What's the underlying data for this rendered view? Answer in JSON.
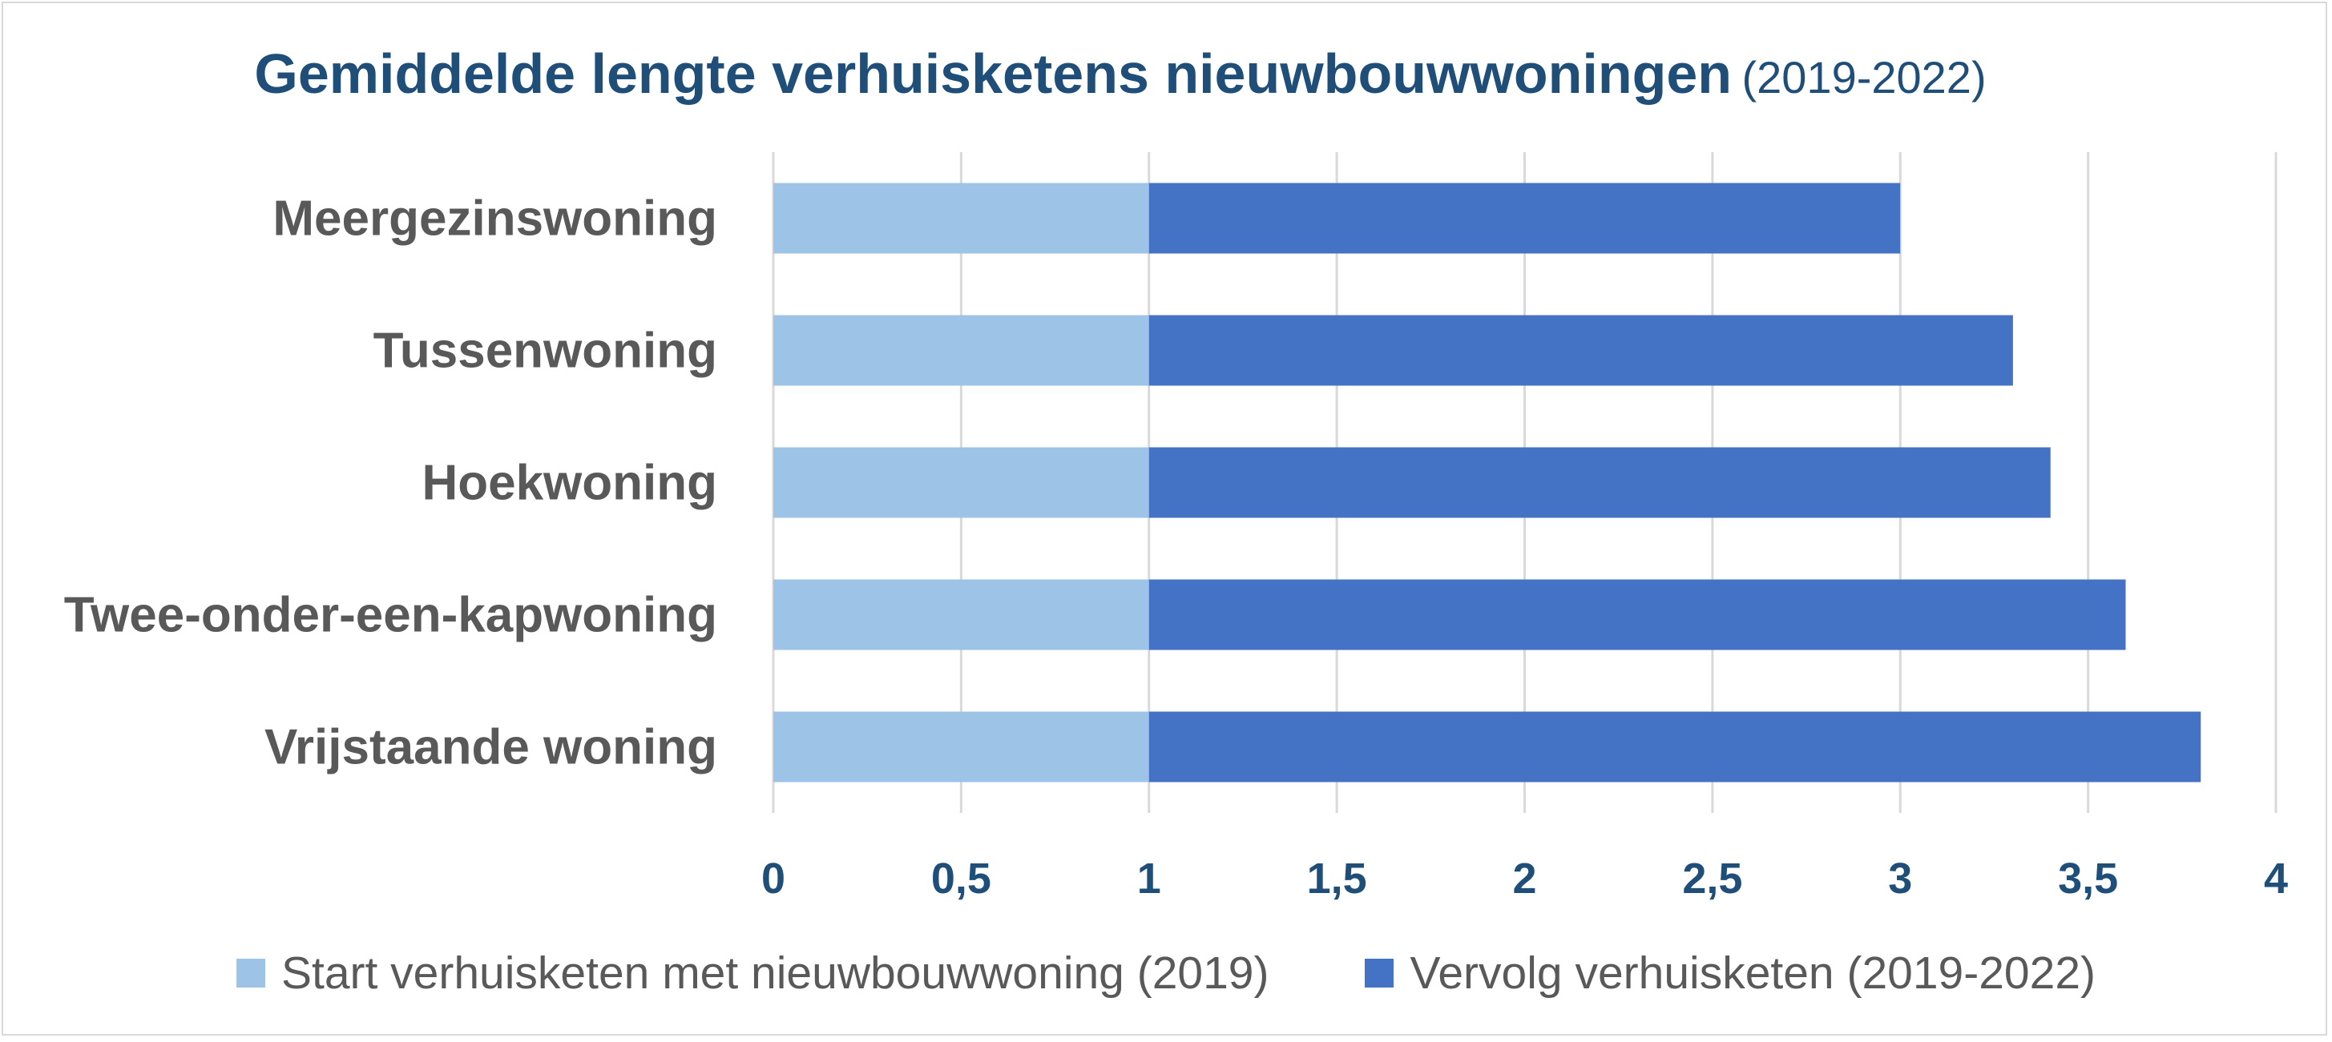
{
  "chart_data": {
    "type": "bar",
    "orientation": "horizontal",
    "stacked": true,
    "title": "Gemiddelde lengte verhuisketens nieuwbouwwoningen",
    "subtitle": "(2019-2022)",
    "categories": [
      "Meergezinswoning",
      "Tussenwoning",
      "Hoekwoning",
      "Twee-onder-een-kapwoning",
      "Vrijstaande woning"
    ],
    "series": [
      {
        "name": "Start verhuisketen met nieuwbouwwoning (2019)",
        "color": "#9dc3e6",
        "values": [
          1,
          1,
          1,
          1,
          1
        ]
      },
      {
        "name": "Vervolg verhuisketen (2019-2022)",
        "color": "#4472c4",
        "values": [
          2.0,
          2.3,
          2.4,
          2.6,
          2.8
        ]
      }
    ],
    "x_ticks": [
      "0",
      "0,5",
      "1",
      "1,5",
      "2",
      "2,5",
      "3",
      "3,5",
      "4"
    ],
    "xlim": [
      0,
      4
    ],
    "grid": true,
    "legend_position": "bottom"
  }
}
